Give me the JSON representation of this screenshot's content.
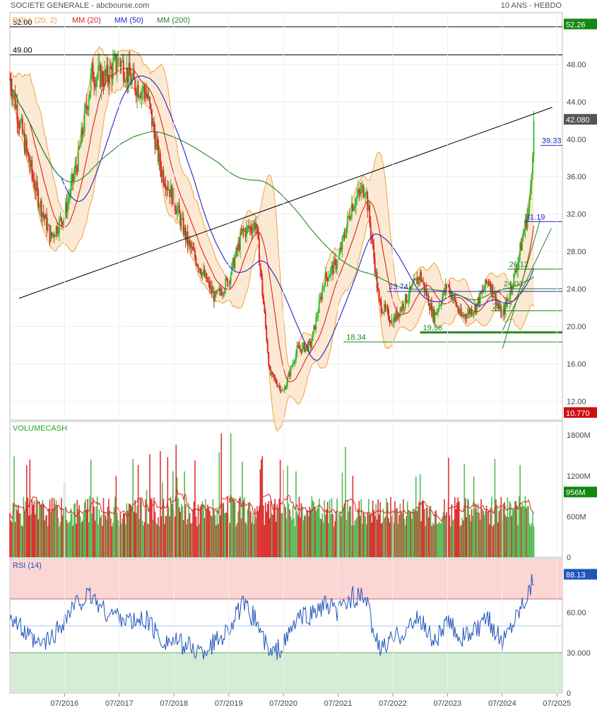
{
  "header": {
    "instrument": "SOCIETE GENERALE - abcbourse.com",
    "period": "10 ANS - HEBDO"
  },
  "chart_data": [
    {
      "panel": "price",
      "type": "candlestick",
      "legend": [
        {
          "label": "BOLL (20, 2)",
          "color": "#f0a040"
        },
        {
          "label": "MM (20)",
          "color": "#dd2222"
        },
        {
          "label": "MM (50)",
          "color": "#2222cc"
        },
        {
          "label": "MM (200)",
          "color": "#228822"
        }
      ],
      "ylim": [
        10.0,
        53.5
      ],
      "yticks": [
        "48.00",
        "44.00",
        "40.00",
        "36.00",
        "32.00",
        "28.00",
        "24.00",
        "20.00",
        "16.00",
        "12.00"
      ],
      "last_price_tag": {
        "value": "42.080",
        "color": "#555555"
      },
      "high_tag": {
        "value": "52.26",
        "color": "#118811"
      },
      "low_tag": {
        "value": "10.770",
        "color": "#cc1111"
      },
      "horizontal_lines": [
        {
          "label": "52.00",
          "value": 52.0
        },
        {
          "label": "49.00",
          "value": 49.0
        }
      ],
      "trendline": {
        "from": [
          "2015-09",
          23.0
        ],
        "to": [
          "2025-06",
          43.4
        ]
      },
      "levels": [
        {
          "label": "39.33",
          "value": 39.33,
          "color": "#2222cc"
        },
        {
          "label": "31.19",
          "value": 31.19,
          "color": "#2222cc"
        },
        {
          "label": "26.12",
          "value": 26.12,
          "color": "#228822"
        },
        {
          "label": "24.03",
          "value": 24.03,
          "color": "#228822"
        },
        {
          "label": "23.74",
          "value": 23.74,
          "color": "#2222cc"
        },
        {
          "label": "21.67",
          "value": 21.67,
          "color": "#228822"
        },
        {
          "label": "19.36",
          "value": 19.36,
          "color": "#228822"
        },
        {
          "label": "18.34",
          "value": 18.34,
          "color": "#228822"
        }
      ],
      "close_series": {
        "dates": [
          "2015-07",
          "2015-10",
          "2016-01",
          "2016-04",
          "2016-07",
          "2016-10",
          "2017-01",
          "2017-04",
          "2017-07",
          "2017-10",
          "2018-01",
          "2018-04",
          "2018-07",
          "2018-10",
          "2019-01",
          "2019-04",
          "2019-07",
          "2019-10",
          "2020-01",
          "2020-04",
          "2020-07",
          "2020-10",
          "2021-01",
          "2021-04",
          "2021-07",
          "2021-10",
          "2022-01",
          "2022-04",
          "2022-07",
          "2022-10",
          "2023-01",
          "2023-04",
          "2023-07",
          "2023-10",
          "2024-01",
          "2024-04",
          "2024-07",
          "2024-10",
          "2025-01",
          "2025-02"
        ],
        "close": [
          46.5,
          40.0,
          34.0,
          29.5,
          32.0,
          38.0,
          47.0,
          46.5,
          48.5,
          46.0,
          45.0,
          37.0,
          33.5,
          29.0,
          26.0,
          23.0,
          25.0,
          30.0,
          31.0,
          15.0,
          13.0,
          17.5,
          18.0,
          25.0,
          27.0,
          33.0,
          35.0,
          22.5,
          20.5,
          23.0,
          25.5,
          21.0,
          24.5,
          21.0,
          22.0,
          25.0,
          21.0,
          26.0,
          33.0,
          42.08
        ]
      }
    },
    {
      "panel": "volume",
      "type": "bar",
      "legend": [
        {
          "label": "VOLUMECASH",
          "color": "#22aa22"
        }
      ],
      "ylim": [
        0,
        2000
      ],
      "yticks": [
        "1800M",
        "1200M",
        "600M",
        "0"
      ],
      "last_tag": {
        "value": "956M",
        "color": "#118811"
      }
    },
    {
      "panel": "rsi",
      "type": "line",
      "legend": [
        {
          "label": "RSI (14)",
          "color": "#2255bb"
        }
      ],
      "ylim": [
        0,
        100
      ],
      "yticks": [
        "60.00",
        "30.000",
        "0"
      ],
      "last_tag": {
        "value": "88.13",
        "color": "#2255bb"
      },
      "overbought": 70,
      "oversold": 30,
      "series": {
        "dates": [
          "2015-07",
          "2015-10",
          "2016-01",
          "2016-04",
          "2016-07",
          "2016-10",
          "2017-01",
          "2017-04",
          "2017-07",
          "2017-10",
          "2018-01",
          "2018-04",
          "2018-07",
          "2018-10",
          "2019-01",
          "2019-04",
          "2019-07",
          "2019-10",
          "2020-01",
          "2020-04",
          "2020-07",
          "2020-10",
          "2021-01",
          "2021-04",
          "2021-07",
          "2021-10",
          "2022-01",
          "2022-04",
          "2022-07",
          "2022-10",
          "2023-01",
          "2023-04",
          "2023-07",
          "2023-10",
          "2024-01",
          "2024-04",
          "2024-07",
          "2024-10",
          "2025-01",
          "2025-02"
        ],
        "values": [
          60,
          45,
          35,
          40,
          55,
          68,
          72,
          60,
          58,
          52,
          55,
          40,
          38,
          35,
          30,
          38,
          48,
          65,
          55,
          28,
          35,
          55,
          58,
          65,
          60,
          72,
          70,
          32,
          40,
          48,
          55,
          38,
          52,
          42,
          45,
          55,
          38,
          58,
          78,
          88.13
        ]
      }
    }
  ],
  "xaxis": {
    "ticks": [
      "07/2016",
      "07/2017",
      "07/2018",
      "07/2019",
      "07/2020",
      "07/2021",
      "07/2022",
      "07/2023",
      "07/2024",
      "07/2025"
    ]
  }
}
